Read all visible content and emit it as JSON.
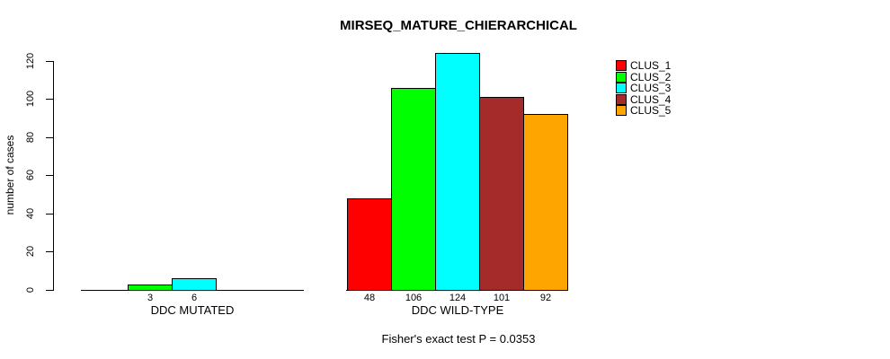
{
  "chart_data": {
    "type": "bar",
    "title": "MIRSEQ_MATURE_CHIERARCHICAL",
    "subtitle": "Fisher's exact test P = 0.0353",
    "ylabel": "number of cases",
    "xlabel": "",
    "ylim": [
      0,
      120
    ],
    "yticks": [
      0,
      20,
      40,
      60,
      80,
      100,
      120
    ],
    "grid": false,
    "legend_position": "top-right",
    "categories": [
      "DDC MUTATED",
      "DDC WILD-TYPE"
    ],
    "series": [
      {
        "name": "CLUS_1",
        "color": "#ff0000",
        "values": [
          0,
          48
        ]
      },
      {
        "name": "CLUS_2",
        "color": "#00ff00",
        "values": [
          3,
          106
        ]
      },
      {
        "name": "CLUS_3",
        "color": "#00ffff",
        "values": [
          6,
          124
        ]
      },
      {
        "name": "CLUS_4",
        "color": "#a52a2a",
        "values": [
          0,
          101
        ]
      },
      {
        "name": "CLUS_5",
        "color": "#ffa500",
        "values": [
          0,
          92
        ]
      }
    ],
    "bar_labels": {
      "DDC MUTATED": [
        "",
        "3",
        "6",
        "",
        ""
      ],
      "DDC WILD-TYPE": [
        "48",
        "106",
        "124",
        "101",
        "92"
      ]
    },
    "value_label_rule": "shown below each nonzero bar"
  }
}
